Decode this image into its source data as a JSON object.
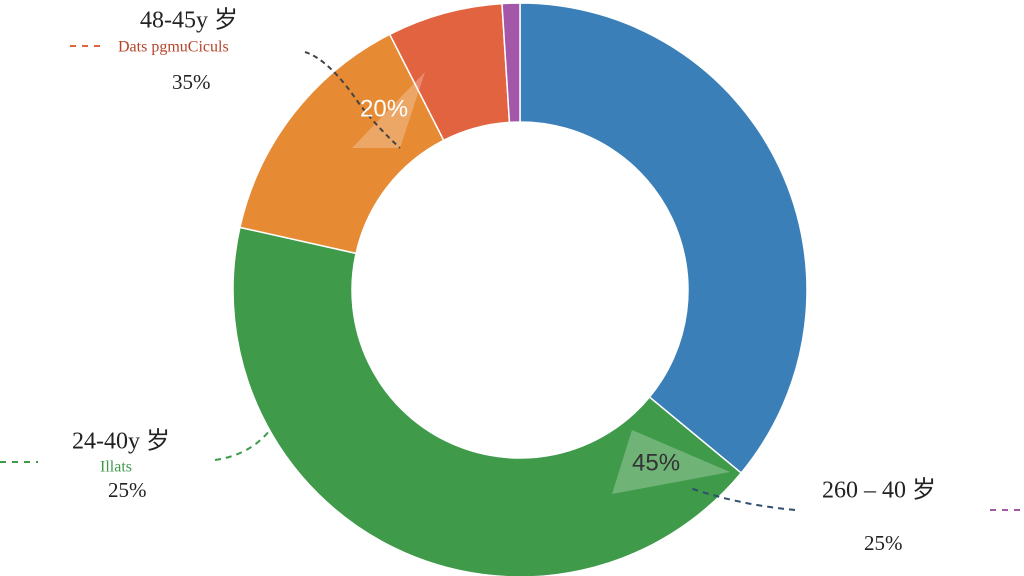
{
  "chart_data": {
    "type": "pie",
    "donut": true,
    "categories": [
      null,
      null,
      null,
      null,
      null
    ],
    "values": [
      36,
      42.5,
      14,
      6.5,
      1
    ],
    "colors": [
      "#3a7fb8",
      "#3f9a4a",
      "#e68a34",
      "#e2633f",
      "#a457a8"
    ],
    "annotations": [
      "48-45y 岁",
      "Dats pgmuCiculs",
      "35%",
      "20%",
      "24-40y 岁",
      "Illats",
      "25%",
      "45%",
      "260 – 40 岁",
      "25%"
    ]
  }
}
